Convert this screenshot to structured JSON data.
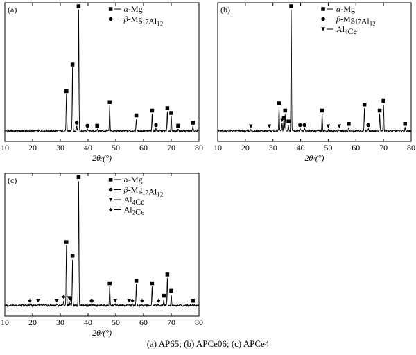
{
  "caption": "(a) AP65; (b) APCe06; (c) APCe4",
  "chart_data": [
    {
      "type": "line",
      "panel_label": "(a)",
      "xlabel": "2θ/(°)",
      "xlim": [
        10,
        80
      ],
      "xticks": [
        10,
        20,
        30,
        40,
        50,
        60,
        70,
        80
      ],
      "y_relative_intensity_range": [
        0,
        100
      ],
      "grid": false,
      "legend_position": "top-right",
      "legend": [
        {
          "symbol": "square",
          "label": "α-Mg"
        },
        {
          "symbol": "circle",
          "label": "β-Mg17Al12"
        }
      ],
      "peaks": [
        {
          "x": 32.2,
          "y": 30,
          "phase": "square"
        },
        {
          "x": 34.4,
          "y": 52,
          "phase": "square"
        },
        {
          "x": 35.9,
          "y": 4,
          "phase": "circle"
        },
        {
          "x": 36.6,
          "y": 100,
          "phase": "square"
        },
        {
          "x": 39.8,
          "y": 1.5,
          "phase": "circle"
        },
        {
          "x": 43.3,
          "y": 1.5,
          "phase": "square"
        },
        {
          "x": 47.8,
          "y": 21,
          "phase": "square"
        },
        {
          "x": 57.4,
          "y": 10,
          "phase": "square"
        },
        {
          "x": 63.1,
          "y": 14,
          "phase": "square"
        },
        {
          "x": 64.5,
          "y": 2,
          "phase": "circle"
        },
        {
          "x": 68.6,
          "y": 16,
          "phase": "square"
        },
        {
          "x": 70.0,
          "y": 12,
          "phase": "square"
        },
        {
          "x": 72.5,
          "y": 1.5,
          "phase": "square"
        },
        {
          "x": 77.8,
          "y": 4,
          "phase": "square"
        }
      ]
    },
    {
      "type": "line",
      "panel_label": "(b)",
      "xlabel": "2θ/(°)",
      "xlim": [
        10,
        80
      ],
      "xticks": [
        10,
        20,
        30,
        40,
        50,
        60,
        70,
        80
      ],
      "y_relative_intensity_range": [
        0,
        100
      ],
      "grid": false,
      "legend_position": "top-right",
      "legend": [
        {
          "symbol": "square",
          "label": "α-Mg"
        },
        {
          "symbol": "circle",
          "label": "β-Mg17Al12"
        },
        {
          "symbol": "triangle-down",
          "label": "Al4Ce"
        }
      ],
      "peaks": [
        {
          "x": 22.0,
          "y": 1,
          "phase": "triangle-down"
        },
        {
          "x": 28.7,
          "y": 1,
          "phase": "triangle-down"
        },
        {
          "x": 32.2,
          "y": 20,
          "phase": "square"
        },
        {
          "x": 33.3,
          "y": 6,
          "phase": "triangle-down"
        },
        {
          "x": 33.9,
          "y": 8,
          "phase": "circle"
        },
        {
          "x": 34.4,
          "y": 14,
          "phase": "square"
        },
        {
          "x": 35.6,
          "y": 5,
          "phase": "square"
        },
        {
          "x": 36.6,
          "y": 100,
          "phase": "square"
        },
        {
          "x": 39.8,
          "y": 2,
          "phase": "circle"
        },
        {
          "x": 41.4,
          "y": 2,
          "phase": "circle"
        },
        {
          "x": 47.8,
          "y": 14,
          "phase": "square"
        },
        {
          "x": 50.0,
          "y": 1,
          "phase": "triangle-down"
        },
        {
          "x": 54.0,
          "y": 1,
          "phase": "triangle-down"
        },
        {
          "x": 57.4,
          "y": 3,
          "phase": "square"
        },
        {
          "x": 63.1,
          "y": 19,
          "phase": "square"
        },
        {
          "x": 64.5,
          "y": 2,
          "phase": "circle"
        },
        {
          "x": 68.6,
          "y": 14,
          "phase": "square"
        },
        {
          "x": 70.0,
          "y": 22,
          "phase": "square"
        },
        {
          "x": 77.8,
          "y": 3,
          "phase": "square"
        }
      ]
    },
    {
      "type": "line",
      "panel_label": "(c)",
      "xlabel": "2θ/(°)",
      "xlim": [
        10,
        80
      ],
      "xticks": [
        10,
        20,
        30,
        40,
        50,
        60,
        70,
        80
      ],
      "y_relative_intensity_range": [
        0,
        100
      ],
      "grid": false,
      "legend_position": "top-right",
      "legend": [
        {
          "symbol": "square",
          "label": "α-Mg"
        },
        {
          "symbol": "circle",
          "label": "β-Mg17Al12"
        },
        {
          "symbol": "triangle-down",
          "label": "Al4Ce"
        },
        {
          "symbol": "diamond",
          "label": "Al2Ce"
        }
      ],
      "peaks": [
        {
          "x": 19.0,
          "y": 1,
          "phase": "diamond"
        },
        {
          "x": 22.0,
          "y": 1,
          "phase": "triangle-down"
        },
        {
          "x": 28.7,
          "y": 1,
          "phase": "triangle-down"
        },
        {
          "x": 31.2,
          "y": 4,
          "phase": "diamond"
        },
        {
          "x": 32.2,
          "y": 48,
          "phase": "square"
        },
        {
          "x": 33.2,
          "y": 3,
          "phase": "triangle-down"
        },
        {
          "x": 33.7,
          "y": 2,
          "phase": "triangle-down"
        },
        {
          "x": 34.4,
          "y": 37,
          "phase": "square"
        },
        {
          "x": 36.6,
          "y": 100,
          "phase": "square"
        },
        {
          "x": 41.3,
          "y": 1,
          "phase": "circle"
        },
        {
          "x": 47.8,
          "y": 15,
          "phase": "square"
        },
        {
          "x": 49.8,
          "y": 1,
          "phase": "triangle-down"
        },
        {
          "x": 54.8,
          "y": 1,
          "phase": "triangle-down"
        },
        {
          "x": 56.0,
          "y": 1,
          "phase": "diamond"
        },
        {
          "x": 57.4,
          "y": 17,
          "phase": "square"
        },
        {
          "x": 59.5,
          "y": 1,
          "phase": "diamond"
        },
        {
          "x": 63.1,
          "y": 15,
          "phase": "square"
        },
        {
          "x": 65.4,
          "y": 1,
          "phase": "diamond"
        },
        {
          "x": 67.3,
          "y": 5,
          "phase": "square"
        },
        {
          "x": 68.6,
          "y": 22,
          "phase": "square"
        },
        {
          "x": 70.0,
          "y": 9,
          "phase": "square"
        },
        {
          "x": 77.8,
          "y": 1,
          "phase": "square"
        }
      ]
    }
  ]
}
